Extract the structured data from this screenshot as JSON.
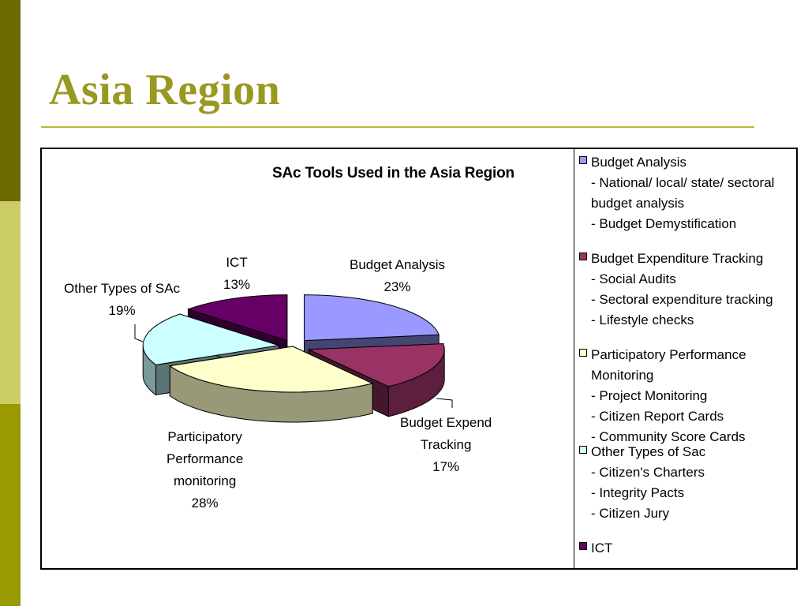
{
  "slide": {
    "title": "Asia Region",
    "colors": {
      "side_dark": "#6b6b00",
      "side_light": "#cccc66",
      "side_mid": "#999900",
      "title": "#999922"
    }
  },
  "chart_data": {
    "type": "pie",
    "title": "SAc Tools Used in the Asia Region",
    "slices": [
      {
        "label_lines": [
          "Budget Analysis"
        ],
        "value": 23,
        "value_label": "23%",
        "color": "#9999ff"
      },
      {
        "label_lines": [
          "Budget Expend",
          "Tracking"
        ],
        "value": 17,
        "value_label": "17%",
        "color": "#993366"
      },
      {
        "label_lines": [
          "Participatory",
          "Performance",
          "monitoring"
        ],
        "value": 28,
        "value_label": "28%",
        "color": "#ffffcc"
      },
      {
        "label_lines": [
          "Other Types of SAc"
        ],
        "value": 19,
        "value_label": "19%",
        "color": "#ccffff"
      },
      {
        "label_lines": [
          "ICT"
        ],
        "value": 13,
        "value_label": "13%",
        "color": "#660066"
      }
    ],
    "legend": [
      {
        "color": "#9999ff",
        "lines": [
          "Budget Analysis",
          "- National/ local/ state/ sectoral",
          "budget analysis",
          "- Budget Demystification"
        ]
      },
      {
        "color": "#993366",
        "lines": [
          "Budget Expenditure Tracking",
          "- Social Audits",
          "- Sectoral expenditure tracking",
          "- Lifestyle checks"
        ]
      },
      {
        "color": "#ffffcc",
        "lines": [
          "Participatory Performance",
          "Monitoring",
          "- Project Monitoring",
          "- Citizen Report Cards",
          "- Community Score Cards"
        ]
      },
      {
        "color": "#ccffff",
        "lines": [
          "Other Types of Sac",
          "- Citizen's Charters",
          "- Integrity Pacts",
          "- Citizen Jury"
        ]
      },
      {
        "color": "#660066",
        "lines": [
          "ICT"
        ]
      }
    ],
    "legend_position": "right"
  }
}
